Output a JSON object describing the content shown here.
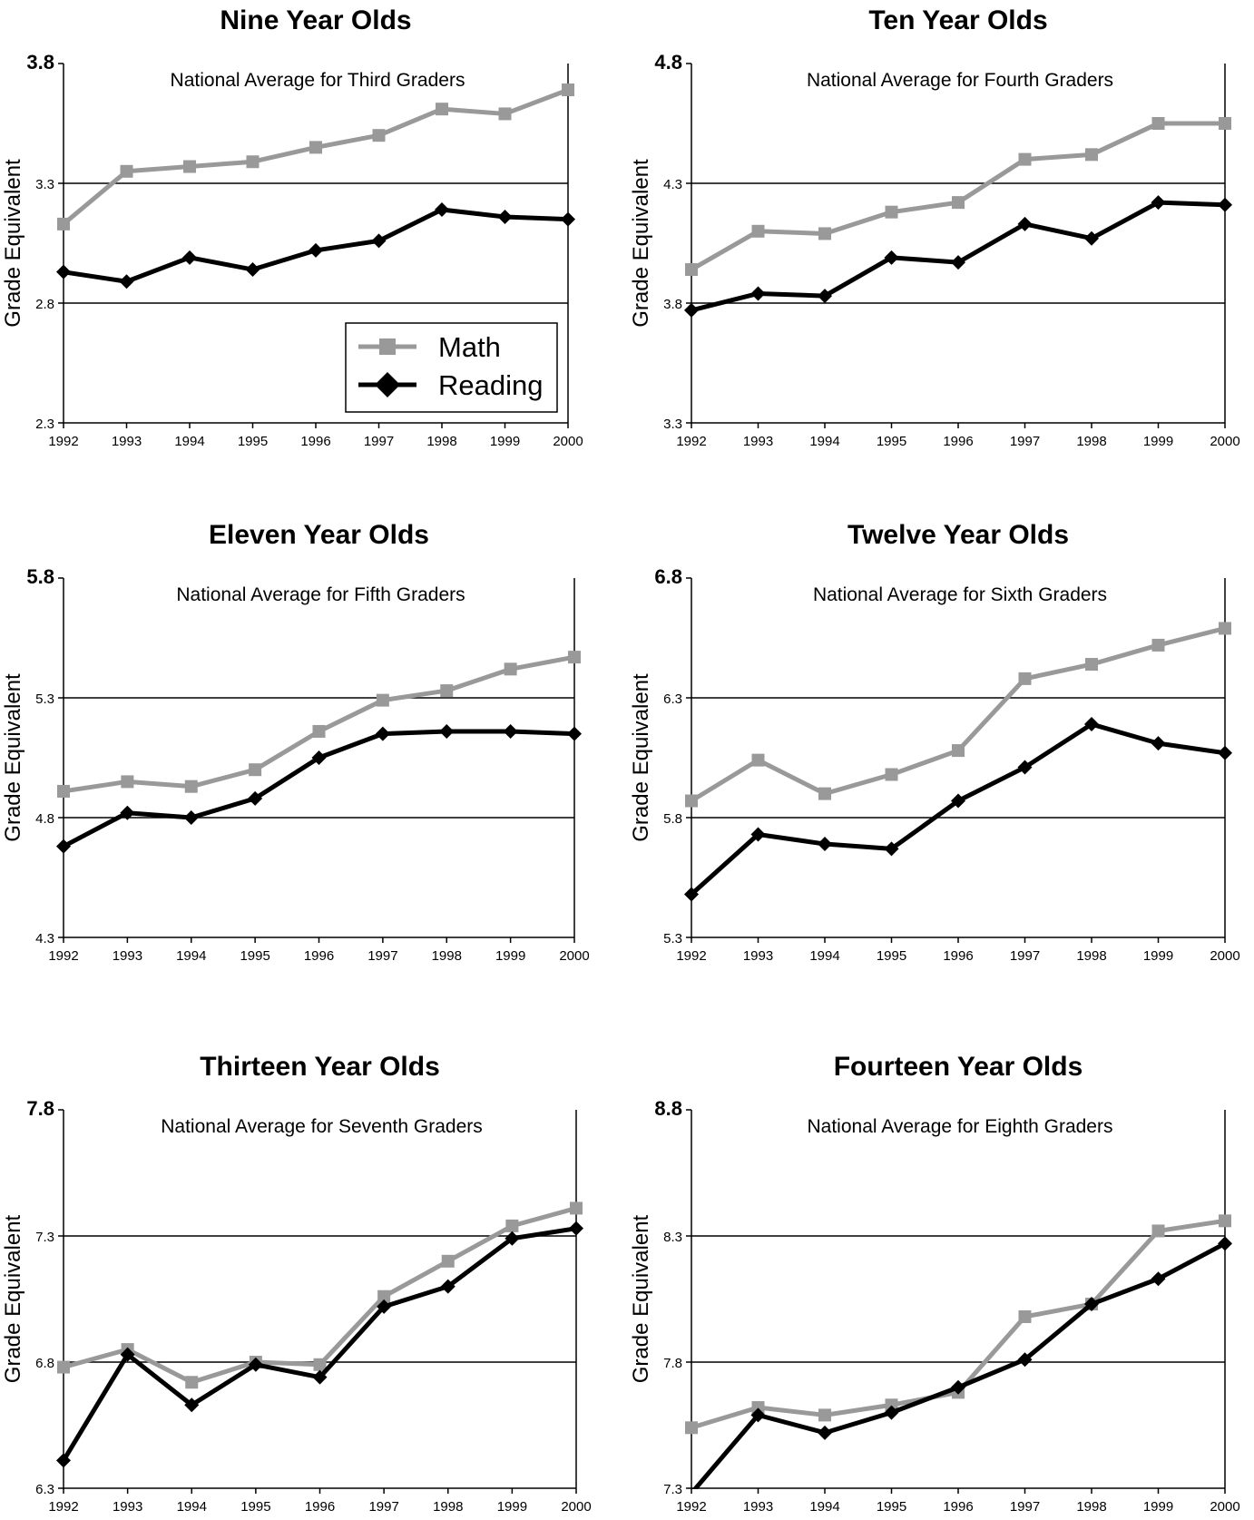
{
  "legend": {
    "math_label": "Math",
    "reading_label": "Reading"
  },
  "colors": {
    "math": "#999999",
    "reading": "#000000",
    "reference_line": "#000000"
  },
  "chart_data": [
    {
      "type": "line",
      "title": "Nine Year Olds",
      "annotation": "National Average for Third Graders",
      "ylabel": "Grade Equivalent",
      "x": [
        "1992",
        "1993",
        "1994",
        "1995",
        "1996",
        "1997",
        "1998",
        "1999",
        "2000"
      ],
      "y_ticks": [
        "2.3",
        "2.8",
        "3.3",
        "3.8"
      ],
      "ylim": [
        2.3,
        3.8
      ],
      "reference_lines": [
        2.8,
        3.3
      ],
      "legend": true,
      "series": [
        {
          "name": "Math",
          "values": [
            3.13,
            3.35,
            3.37,
            3.39,
            3.45,
            3.5,
            3.61,
            3.59,
            3.69
          ]
        },
        {
          "name": "Reading",
          "values": [
            2.93,
            2.89,
            2.99,
            2.94,
            3.02,
            3.06,
            3.19,
            3.16,
            3.15
          ]
        }
      ]
    },
    {
      "type": "line",
      "title": "Ten Year Olds",
      "annotation": "National Average for Fourth Graders",
      "ylabel": "Grade Equivalent",
      "x": [
        "1992",
        "1993",
        "1994",
        "1995",
        "1996",
        "1997",
        "1998",
        "1999",
        "2000"
      ],
      "y_ticks": [
        "3.3",
        "3.8",
        "4.3",
        "4.8"
      ],
      "ylim": [
        3.3,
        4.8
      ],
      "reference_lines": [
        3.8,
        4.3
      ],
      "legend": false,
      "series": [
        {
          "name": "Math",
          "values": [
            3.94,
            4.1,
            4.09,
            4.18,
            4.22,
            4.4,
            4.42,
            4.55,
            4.55
          ]
        },
        {
          "name": "Reading",
          "values": [
            3.77,
            3.84,
            3.83,
            3.99,
            3.97,
            4.13,
            4.07,
            4.22,
            4.21
          ]
        }
      ]
    },
    {
      "type": "line",
      "title": "Eleven Year Olds",
      "annotation": "National Average for Fifth Graders",
      "ylabel": "Grade Equivalent",
      "x": [
        "1992",
        "1993",
        "1994",
        "1995",
        "1996",
        "1997",
        "1998",
        "1999",
        "2000"
      ],
      "y_ticks": [
        "4.3",
        "4.8",
        "5.3",
        "5.8"
      ],
      "ylim": [
        4.3,
        5.8
      ],
      "reference_lines": [
        4.8,
        5.3
      ],
      "legend": false,
      "series": [
        {
          "name": "Math",
          "values": [
            4.91,
            4.95,
            4.93,
            5.0,
            5.16,
            5.29,
            5.33,
            5.42,
            5.47
          ]
        },
        {
          "name": "Reading",
          "values": [
            4.68,
            4.82,
            4.8,
            4.88,
            5.05,
            5.15,
            5.16,
            5.16,
            5.15
          ]
        }
      ]
    },
    {
      "type": "line",
      "title": "Twelve Year Olds",
      "annotation": "National Average for Sixth Graders",
      "ylabel": "Grade Equivalent",
      "x": [
        "1992",
        "1993",
        "1994",
        "1995",
        "1996",
        "1997",
        "1998",
        "1999",
        "2000"
      ],
      "y_ticks": [
        "5.3",
        "5.8",
        "6.3",
        "6.8"
      ],
      "ylim": [
        5.3,
        6.8
      ],
      "reference_lines": [
        5.8,
        6.3
      ],
      "legend": false,
      "series": [
        {
          "name": "Math",
          "values": [
            5.87,
            6.04,
            5.9,
            5.98,
            6.08,
            6.38,
            6.44,
            6.52,
            6.59
          ]
        },
        {
          "name": "Reading",
          "values": [
            5.48,
            5.73,
            5.69,
            5.67,
            5.87,
            6.01,
            6.19,
            6.11,
            6.07
          ]
        }
      ]
    },
    {
      "type": "line",
      "title": "Thirteen Year Olds",
      "annotation": "National Average for Seventh Graders",
      "ylabel": "Grade Equivalent",
      "x": [
        "1992",
        "1993",
        "1994",
        "1995",
        "1996",
        "1997",
        "1998",
        "1999",
        "2000"
      ],
      "y_ticks": [
        "6.3",
        "6.8",
        "7.3",
        "7.8"
      ],
      "ylim": [
        6.3,
        7.8
      ],
      "reference_lines": [
        6.8,
        7.3
      ],
      "legend": false,
      "series": [
        {
          "name": "Math",
          "values": [
            6.78,
            6.85,
            6.72,
            6.8,
            6.79,
            7.06,
            7.2,
            7.34,
            7.41
          ]
        },
        {
          "name": "Reading",
          "values": [
            6.41,
            6.83,
            6.63,
            6.79,
            6.74,
            7.02,
            7.1,
            7.29,
            7.33
          ]
        }
      ]
    },
    {
      "type": "line",
      "title": "Fourteen Year Olds",
      "annotation": "National Average for Eighth Graders",
      "ylabel": "Grade Equivalent",
      "x": [
        "1992",
        "1993",
        "1994",
        "1995",
        "1996",
        "1997",
        "1998",
        "1999",
        "2000"
      ],
      "y_ticks": [
        "7.3",
        "7.8",
        "8.3",
        "8.8"
      ],
      "ylim": [
        7.3,
        8.8
      ],
      "reference_lines": [
        7.8,
        8.3
      ],
      "legend": false,
      "series": [
        {
          "name": "Math",
          "values": [
            7.54,
            7.62,
            7.59,
            7.63,
            7.68,
            7.98,
            8.03,
            8.32,
            8.36
          ]
        },
        {
          "name": "Reading",
          "values": [
            7.28,
            7.59,
            7.52,
            7.6,
            7.7,
            7.81,
            8.03,
            8.13,
            8.27
          ]
        }
      ]
    }
  ]
}
